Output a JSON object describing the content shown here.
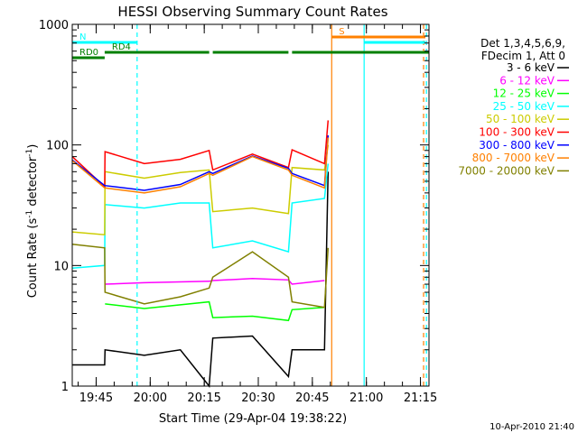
{
  "chart_data": {
    "type": "line",
    "title": "HESSI Observing Summary Count Rates",
    "xlabel": "Start Time (29-Apr-04 19:38:22)",
    "ylabel": "Count Rate (s-1 detector-1)",
    "y_scale": "log",
    "ylim": [
      1,
      1000
    ],
    "xlim_minutes": [
      0,
      99
    ],
    "x_start": "19:38:22",
    "x_ticks": [
      {
        "minutes": 6.633,
        "label": "19:45"
      },
      {
        "minutes": 21.633,
        "label": "20:00"
      },
      {
        "minutes": 36.633,
        "label": "20:15"
      },
      {
        "minutes": 51.633,
        "label": "20:30"
      },
      {
        "minutes": 66.633,
        "label": "20:45"
      },
      {
        "minutes": 81.633,
        "label": "21:00"
      },
      {
        "minutes": 96.633,
        "label": "21:15"
      }
    ],
    "y_ticks": [
      {
        "value": 1,
        "label": "1"
      },
      {
        "value": 10,
        "label": "10"
      },
      {
        "value": 100,
        "label": "100"
      },
      {
        "value": 1000,
        "label": "1000"
      }
    ],
    "legend": {
      "header": [
        "Det 1,3,4,5,6,9,",
        "FDecim 1, Att 0"
      ],
      "placement": "right"
    },
    "series": [
      {
        "name": "3 - 6 keV",
        "color": "#000000",
        "x": [
          0,
          9,
          9.1,
          20,
          30,
          38,
          39,
          50,
          60,
          61,
          70,
          71
        ],
        "y": [
          1.5,
          1.5,
          2.0,
          1.8,
          2.0,
          1.0,
          2.5,
          2.6,
          1.2,
          2.0,
          2.0,
          60
        ]
      },
      {
        "name": "6 - 12 keV",
        "color": "#ff00ff",
        "x": [
          9.1,
          20,
          38,
          39,
          50,
          60,
          61,
          70
        ],
        "y": [
          7.0,
          7.2,
          7.4,
          7.5,
          7.8,
          7.6,
          7.0,
          7.5
        ]
      },
      {
        "name": "12 - 25 keV",
        "color": "#00ff00",
        "x": [
          9.1,
          20,
          38,
          39,
          50,
          60,
          61,
          70
        ],
        "y": [
          4.8,
          4.4,
          5.0,
          3.7,
          3.8,
          3.5,
          4.3,
          4.5
        ]
      },
      {
        "name": "25 - 50 keV",
        "color": "#00ffff",
        "x": [
          0,
          9,
          9.1,
          20,
          30,
          38,
          39,
          50,
          60,
          61,
          70,
          71
        ],
        "y": [
          9.5,
          10,
          32,
          30,
          33,
          33,
          14,
          16,
          13,
          33,
          36,
          70
        ]
      },
      {
        "name": "50 - 100 keV",
        "color": "#cccc00",
        "x": [
          0,
          9,
          9.1,
          20,
          30,
          38,
          39,
          50,
          60,
          61,
          70,
          71
        ],
        "y": [
          19,
          18,
          60,
          53,
          59,
          62,
          28,
          30,
          27,
          65,
          62,
          100
        ]
      },
      {
        "name": "100 - 300 keV",
        "color": "#ff0000",
        "x": [
          0,
          9,
          9.1,
          20,
          30,
          38,
          39,
          50,
          60,
          61,
          70,
          71
        ],
        "y": [
          80,
          45,
          88,
          70,
          76,
          90,
          62,
          84,
          65,
          91,
          70,
          160
        ]
      },
      {
        "name": "300 - 800 keV",
        "color": "#0000ff",
        "x": [
          0,
          9,
          20,
          30,
          38,
          39,
          50,
          60,
          61,
          70,
          71
        ],
        "y": [
          75,
          46,
          42,
          47,
          60,
          58,
          81,
          64,
          58,
          46,
          120
        ]
      },
      {
        "name": "800 - 7000 keV",
        "color": "#ff8000",
        "x": [
          0,
          9,
          20,
          30,
          38,
          39,
          50,
          60,
          61,
          70,
          71
        ],
        "y": [
          74,
          44,
          40,
          45,
          58,
          56,
          80,
          62,
          56,
          44,
          115
        ]
      },
      {
        "name": "7000 - 20000 keV",
        "color": "#808000",
        "x": [
          0,
          9,
          9.1,
          20,
          30,
          38,
          39,
          50,
          60,
          61,
          70,
          71
        ],
        "y": [
          15,
          14,
          6.0,
          4.8,
          5.5,
          6.5,
          8,
          13,
          8,
          5.0,
          4.5,
          14
        ]
      }
    ],
    "status_bars": [
      {
        "label": "N",
        "color": "#00ffff",
        "segments": [
          [
            0,
            18
          ]
        ]
      },
      {
        "label": "RD0",
        "color": "#008000",
        "segments": [
          [
            0,
            9
          ]
        ]
      },
      {
        "label": "RD4",
        "color": "#008000",
        "segments": [
          [
            9,
            38
          ],
          [
            39,
            60
          ],
          [
            61,
            99
          ]
        ]
      },
      {
        "label": "S",
        "color": "#ff8000",
        "segments": [
          [
            72,
            98
          ]
        ]
      },
      {
        "label": "",
        "color": "#00ffff",
        "segments": [
          [
            81,
            98
          ]
        ]
      }
    ],
    "vertical_markers": [
      {
        "minutes": 18,
        "color": "#00ffff",
        "style": "dashed"
      },
      {
        "minutes": 72,
        "color": "#ff8000",
        "style": "solid"
      },
      {
        "minutes": 81,
        "color": "#00ffff",
        "style": "solid"
      },
      {
        "minutes": 97.5,
        "color": "#ff8000",
        "style": "dashed"
      },
      {
        "minutes": 98.3,
        "color": "#00ffff",
        "style": "dashed"
      }
    ]
  },
  "timestamp": "10-Apr-2010 21:40"
}
